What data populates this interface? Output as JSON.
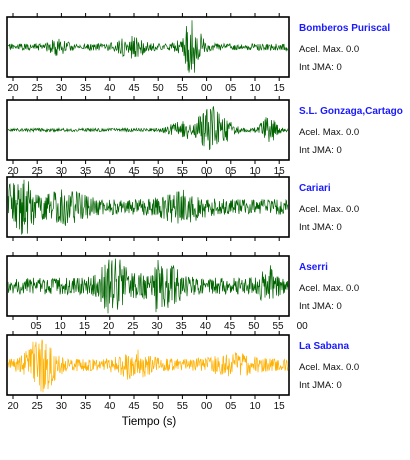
{
  "colors": {
    "trace": "#006400",
    "highlight_trace": "#ffb000",
    "station_name": "#1a1aff",
    "frame": "#000000"
  },
  "x_axis_title": "Tiempo (s)",
  "panels": [
    {
      "name": "Bomberos Puriscal",
      "acel_text": "Acel. Max. 0.0",
      "jma_text": "Int JMA: 0",
      "trace_color": "#006400",
      "tick_labels": [
        "20",
        "25",
        "30",
        "35",
        "40",
        "45",
        "50",
        "55",
        "00",
        "05",
        "10",
        "15"
      ],
      "tick_label_side": "bottom",
      "noise_amp": 0.12,
      "seed": 11,
      "bursts": [
        {
          "center": 0.655,
          "width": 0.035,
          "amp": 0.95
        },
        {
          "center": 0.44,
          "width": 0.05,
          "amp": 0.3
        },
        {
          "center": 0.18,
          "width": 0.03,
          "amp": 0.25
        }
      ]
    },
    {
      "name": "S.L. Gonzaga,Cartago",
      "acel_text": "Acel. Max. 0.0",
      "jma_text": "Int JMA: 0",
      "trace_color": "#006400",
      "tick_labels": [
        "20",
        "25",
        "30",
        "35",
        "40",
        "45",
        "50",
        "55",
        "00",
        "05",
        "10",
        "15"
      ],
      "tick_label_side": "bottom",
      "noise_amp": 0.06,
      "seed": 23,
      "bursts": [
        {
          "center": 0.73,
          "width": 0.06,
          "amp": 0.8
        },
        {
          "center": 0.93,
          "width": 0.03,
          "amp": 0.45
        },
        {
          "center": 0.62,
          "width": 0.05,
          "amp": 0.25
        }
      ]
    },
    {
      "name": "Cariari",
      "acel_text": "Acel. Max. 0.0",
      "jma_text": "Int JMA: 0",
      "trace_color": "#006400",
      "tick_labels": [],
      "tick_label_side": "none",
      "noise_amp": 0.28,
      "seed": 37,
      "bursts": [
        {
          "center": 0.04,
          "width": 0.05,
          "amp": 0.95
        },
        {
          "center": 0.2,
          "width": 0.08,
          "amp": 0.4
        },
        {
          "center": 0.62,
          "width": 0.08,
          "amp": 0.35
        }
      ]
    },
    {
      "name": "Aserri",
      "acel_text": "Acel. Max. 0.0",
      "jma_text": "Int JMA: 0",
      "trace_color": "#006400",
      "tick_labels": [
        "05",
        "10",
        "15",
        "20",
        "25",
        "30",
        "35",
        "40",
        "45",
        "50",
        "55",
        "00"
      ],
      "tick_label_side": "bottom-shifted",
      "noise_amp": 0.3,
      "seed": 51,
      "bursts": [
        {
          "center": 0.38,
          "width": 0.05,
          "amp": 0.85
        },
        {
          "center": 0.55,
          "width": 0.06,
          "amp": 0.75
        },
        {
          "center": 0.93,
          "width": 0.03,
          "amp": 0.55
        }
      ]
    },
    {
      "name": "La Sabana",
      "acel_text": "Acel. Max. 0.0",
      "jma_text": "Int JMA: 0",
      "trace_color": "#ffb000",
      "tick_labels": [
        "20",
        "25",
        "30",
        "35",
        "40",
        "45",
        "50",
        "55",
        "00",
        "05",
        "10",
        "15"
      ],
      "tick_label_side": "bottom",
      "noise_amp": 0.22,
      "seed": 67,
      "bursts": [
        {
          "center": 0.12,
          "width": 0.05,
          "amp": 0.95
        },
        {
          "center": 0.45,
          "width": 0.06,
          "amp": 0.35
        },
        {
          "center": 0.8,
          "width": 0.08,
          "amp": 0.25
        }
      ]
    }
  ]
}
